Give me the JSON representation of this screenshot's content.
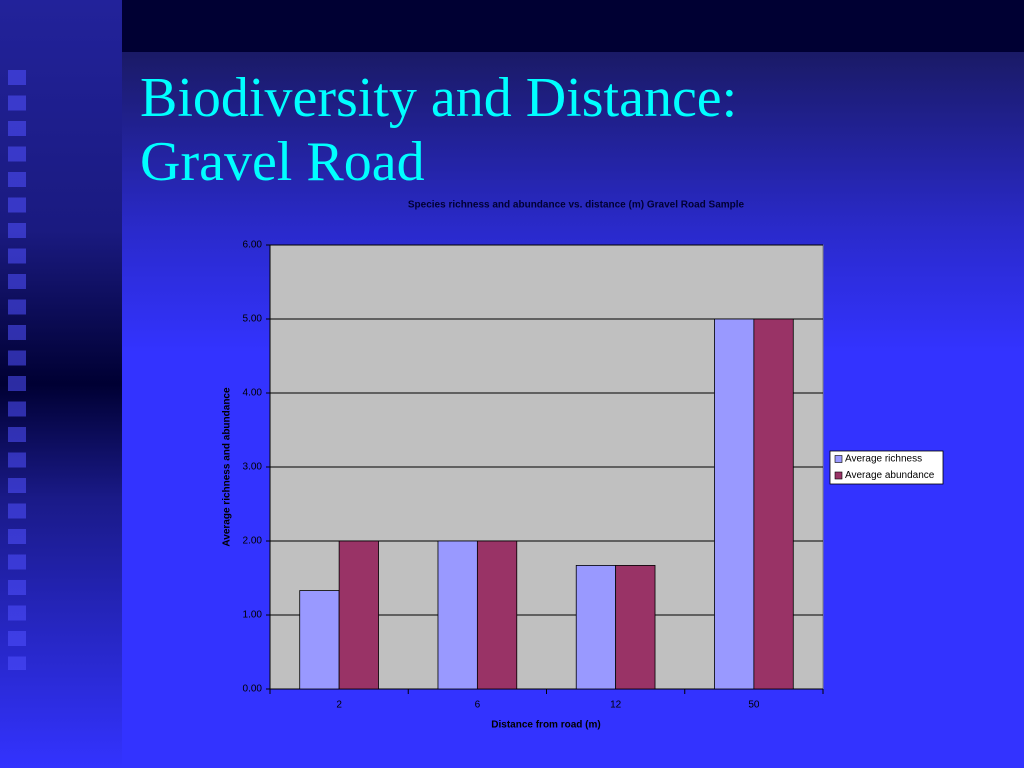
{
  "slide_title": [
    "Biodiversity and Distance:",
    "Gravel Road"
  ],
  "chart_data": {
    "type": "bar",
    "title": "Species richness and abundance vs. distance (m) Gravel Road Sample",
    "x_label": "Distance from road (m)",
    "y_label": "Average richness and abundance",
    "categories": [
      "2",
      "6",
      "12",
      "50"
    ],
    "series": [
      {
        "name": "Average richness",
        "color": "#9999ff",
        "values": [
          1.33,
          2,
          1.67,
          5
        ]
      },
      {
        "name": "Average abundance",
        "color": "#993366",
        "values": [
          2,
          2,
          1.67,
          5
        ]
      }
    ],
    "ylim": [
      0,
      6
    ],
    "yticks": [
      {
        "value": 0,
        "label": "0.00"
      },
      {
        "value": 1,
        "label": "1.00"
      },
      {
        "value": 2,
        "label": "2.00"
      },
      {
        "value": 3,
        "label": "3.00"
      },
      {
        "value": 4,
        "label": "4.00"
      },
      {
        "value": 5,
        "label": "5.00"
      },
      {
        "value": 6,
        "label": "6.00"
      }
    ],
    "grid": true,
    "legend": "right"
  }
}
